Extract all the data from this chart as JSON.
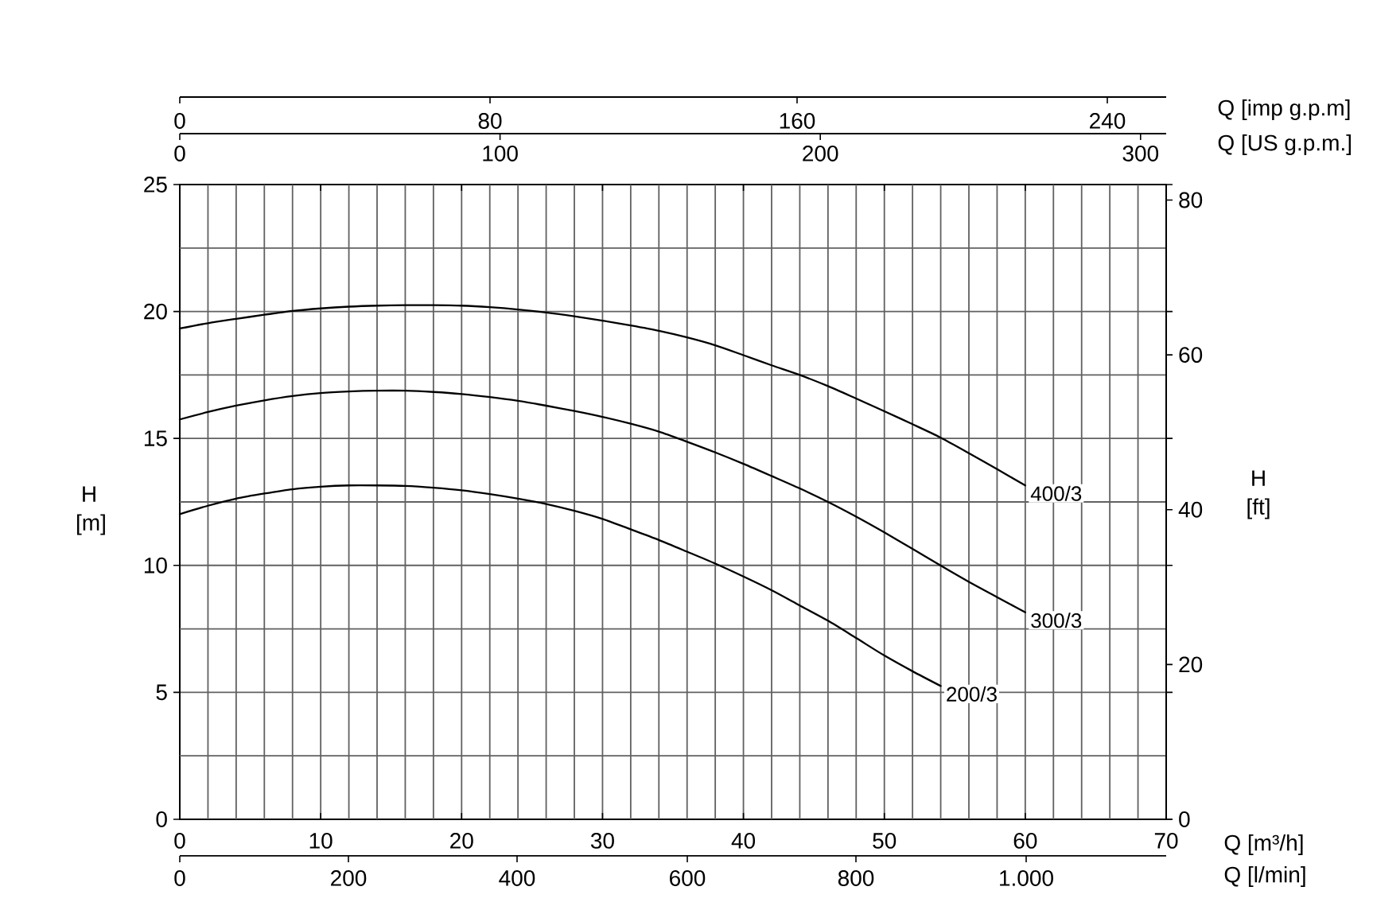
{
  "chart_data": {
    "type": "line",
    "xlabel": "Q [m³/h]",
    "ylabel": "H [m]",
    "y2label": "H [ft]",
    "x2label": "Q [US g.p.m.]",
    "xlim": [
      0,
      70
    ],
    "xticks": [
      0,
      {
        "value": 2,
        "label": null
      },
      {
        "value": 4,
        "label": null
      },
      {
        "value": 6,
        "label": null
      },
      {
        "value": 8,
        "label": null
      },
      10,
      {
        "value": 12,
        "label": null
      },
      {
        "value": 14,
        "label": null
      },
      {
        "value": 16,
        "label": null
      },
      {
        "value": 18,
        "label": null
      },
      20,
      {
        "value": 22,
        "label": null
      },
      {
        "value": 24,
        "label": null
      },
      {
        "value": 26,
        "label": null
      },
      {
        "value": 28,
        "label": null
      },
      30,
      {
        "value": 32,
        "label": null
      },
      {
        "value": 34,
        "label": null
      },
      {
        "value": 36,
        "label": null
      },
      {
        "value": 38,
        "label": null
      },
      40,
      {
        "value": 42,
        "label": null
      },
      {
        "value": 44,
        "label": null
      },
      {
        "value": 46,
        "label": null
      },
      {
        "value": 48,
        "label": null
      },
      50,
      {
        "value": 52,
        "label": null
      },
      {
        "value": 54,
        "label": null
      },
      {
        "value": 56,
        "label": null
      },
      {
        "value": 58,
        "label": null
      },
      60,
      {
        "value": 62,
        "label": null
      },
      {
        "value": 64,
        "label": null
      },
      {
        "value": 66,
        "label": null
      },
      {
        "value": 68,
        "label": null
      },
      70
    ],
    "ylim": [
      0,
      25
    ],
    "yticks": [
      0,
      {
        "value": 2.5,
        "label": null
      },
      5,
      {
        "value": 7.5,
        "label": null
      },
      10,
      {
        "value": 12.5,
        "label": null
      },
      15,
      {
        "value": 17.5,
        "label": null
      },
      20,
      {
        "value": 22.5,
        "label": null
      },
      25
    ],
    "y2lim": [
      0,
      82
    ],
    "y2ticks": [
      0,
      20,
      40,
      60,
      80
    ],
    "x2lim": [
      0,
      308
    ],
    "x2ticks": [
      0,
      100,
      200,
      300
    ],
    "grid": true,
    "marker": "none",
    "line_style": "solid",
    "series": [
      {
        "name": "400/3",
        "color": "#000000",
        "x": [
          0,
          2,
          4,
          6,
          8,
          10,
          12,
          14,
          16,
          18,
          20,
          22,
          24,
          26,
          28,
          30,
          32,
          34,
          36,
          38,
          40,
          42,
          44,
          46,
          48,
          50,
          52,
          54,
          56,
          58,
          60
        ],
        "values": [
          19.33,
          19.54,
          19.71,
          19.87,
          20.02,
          20.12,
          20.19,
          20.23,
          20.25,
          20.25,
          20.23,
          20.17,
          20.08,
          19.96,
          19.81,
          19.64,
          19.45,
          19.24,
          18.98,
          18.67,
          18.28,
          17.88,
          17.5,
          17.06,
          16.57,
          16.07,
          15.56,
          15.03,
          14.42,
          13.79,
          13.15
        ]
      },
      {
        "name": "300/3",
        "color": "#000000",
        "x": [
          0,
          2,
          4,
          6,
          8,
          10,
          12,
          14,
          16,
          18,
          20,
          22,
          24,
          26,
          28,
          30,
          32,
          34,
          36,
          38,
          40,
          42,
          44,
          46,
          48,
          50,
          52,
          54,
          56,
          58,
          60
        ],
        "values": [
          15.75,
          16.04,
          16.29,
          16.5,
          16.67,
          16.79,
          16.85,
          16.88,
          16.88,
          16.83,
          16.75,
          16.63,
          16.48,
          16.29,
          16.08,
          15.85,
          15.58,
          15.27,
          14.87,
          14.45,
          14.0,
          13.52,
          13.03,
          12.5,
          11.92,
          11.3,
          10.65,
          9.99,
          9.35,
          8.75,
          8.15
        ]
      },
      {
        "name": "200/3",
        "color": "#000000",
        "x": [
          0,
          2,
          4,
          6,
          8,
          10,
          12,
          14,
          16,
          18,
          20,
          22,
          24,
          26,
          28,
          30,
          32,
          34,
          36,
          38,
          40,
          42,
          44,
          46,
          48,
          50,
          52,
          54
        ],
        "values": [
          12.02,
          12.35,
          12.63,
          12.83,
          13.0,
          13.1,
          13.15,
          13.15,
          13.13,
          13.06,
          12.96,
          12.81,
          12.63,
          12.42,
          12.15,
          11.83,
          11.42,
          11.0,
          10.54,
          10.07,
          9.56,
          9.02,
          8.42,
          7.82,
          7.14,
          6.45,
          5.83,
          5.25
        ]
      }
    ],
    "annotations": [
      "0",
      "80",
      "160",
      "240",
      "Q [imp g.p.m]",
      "0",
      "200",
      "400",
      "600",
      "800",
      "1.000",
      "Q [l/min]"
    ]
  }
}
